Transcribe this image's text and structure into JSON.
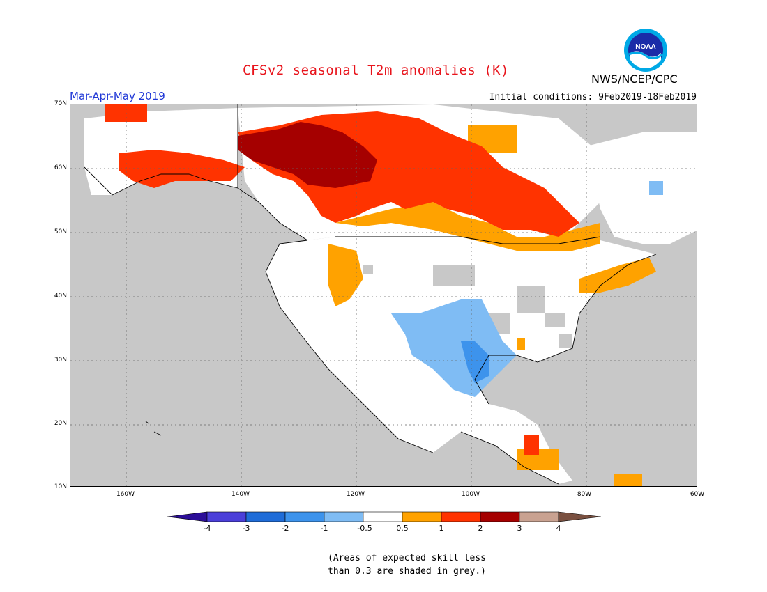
{
  "header": {
    "title": "CFSv2 seasonal T2m anomalies (K)",
    "org": "NWS/NCEP/CPC",
    "season": "Mar-Apr-May 2019",
    "initial_conditions": "Initial conditions: 9Feb2019-18Feb2019",
    "logo_text": "NOAA"
  },
  "map": {
    "lat_labels": [
      "70N",
      "60N",
      "50N",
      "40N",
      "30N",
      "20N",
      "10N"
    ],
    "lon_labels": [
      "160W",
      "140W",
      "120W",
      "100W",
      "80W",
      "60W"
    ]
  },
  "colorbar": {
    "labels": [
      "-4",
      "-3",
      "-2",
      "-1",
      "-0.5",
      "0.5",
      "1",
      "2",
      "3",
      "4"
    ],
    "colors": [
      "#2c0e98",
      "#4b3fd9",
      "#1f6cd8",
      "#3d93ec",
      "#7fbcf4",
      "#ffffff",
      "#ffa200",
      "#ff3300",
      "#a50000",
      "#c9a291",
      "#7a5040"
    ]
  },
  "note": {
    "line1": "(Areas of expected skill less",
    "line2": "than 0.3 are shaded in grey.)"
  }
}
